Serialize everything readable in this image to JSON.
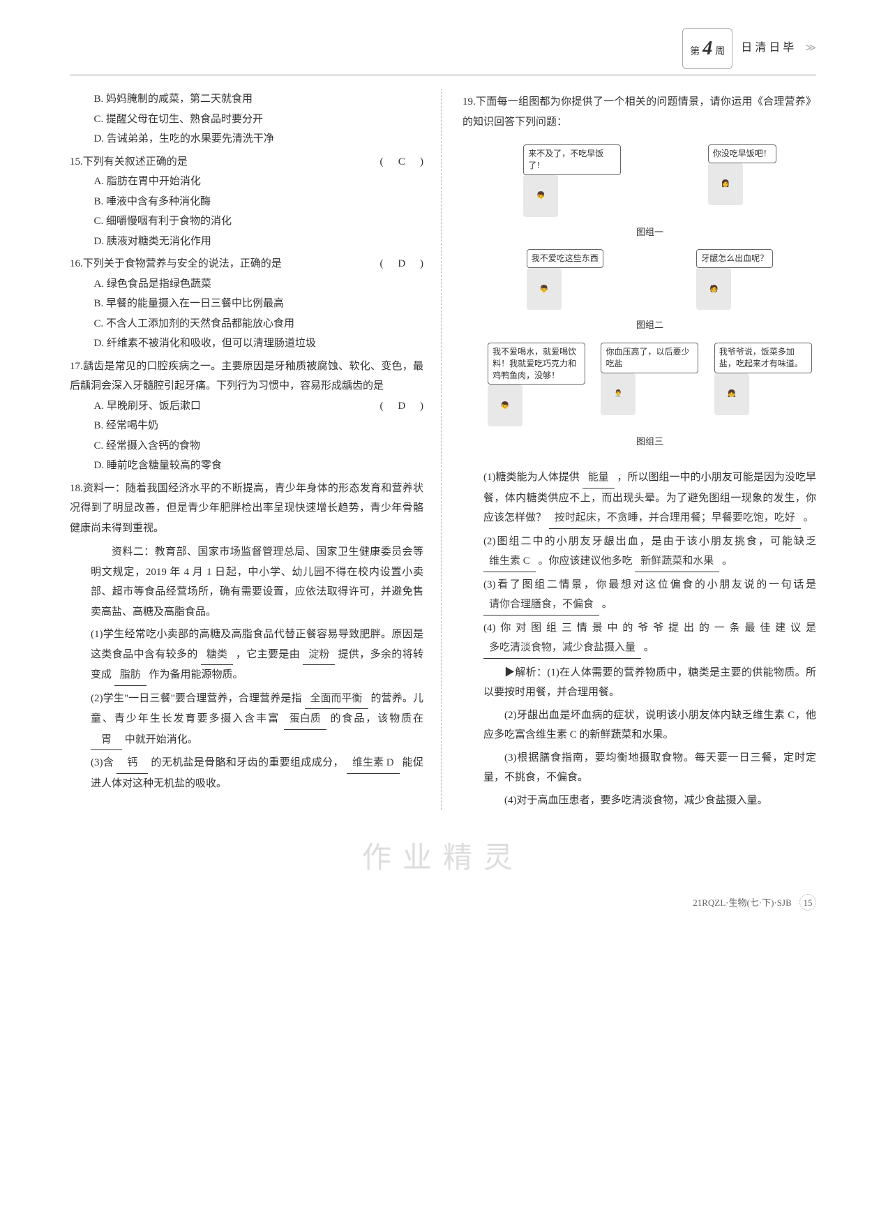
{
  "header": {
    "week_prefix": "第",
    "week_num": "4",
    "week_suffix": "周",
    "title": "日清日毕"
  },
  "left": {
    "opts14": {
      "B": "B. 妈妈腌制的咸菜，第二天就食用",
      "C": "C. 提醒父母在切生、熟食品时要分开",
      "D": "D. 告诫弟弟，生吃的水果要先清洗干净"
    },
    "q15": {
      "num": "15.",
      "text": "下列有关叙述正确的是",
      "answer": "C",
      "A": "A. 脂肪在胃中开始消化",
      "B": "B. 唾液中含有多种消化酶",
      "C": "C. 细嚼慢咽有利于食物的消化",
      "D": "D. 胰液对糖类无消化作用"
    },
    "q16": {
      "num": "16.",
      "text": "下列关于食物营养与安全的说法，正确的是",
      "answer": "D",
      "A": "A. 绿色食品是指绿色蔬菜",
      "B": "B. 早餐的能量摄入在一日三餐中比例最高",
      "C": "C. 不含人工添加剂的天然食品都能放心食用",
      "D": "D. 纤维素不被消化和吸收，但可以清理肠道垃圾"
    },
    "q17": {
      "num": "17.",
      "text": "龋齿是常见的口腔疾病之一。主要原因是牙釉质被腐蚀、软化、变色，最后龋洞会深入牙髓腔引起牙痛。下列行为习惯中，容易形成龋齿的是",
      "answer": "D",
      "A": "A. 早晚刷牙、饭后漱口",
      "B": "B. 经常喝牛奶",
      "C": "C. 经常摄入含钙的食物",
      "D": "D. 睡前吃含糖量较高的零食"
    },
    "q18": {
      "num": "18.",
      "mat1": "资料一：随着我国经济水平的不断提高，青少年身体的形态发育和营养状况得到了明显改善，但是青少年肥胖检出率呈现快速增长趋势，青少年骨骼健康尚未得到重视。",
      "mat2": "资料二：教育部、国家市场监督管理总局、国家卫生健康委员会等明文规定，2019 年 4 月 1 日起，中小学、幼儿园不得在校内设置小卖部、超市等食品经营场所，确有需要设置，应依法取得许可，并避免售卖高盐、高糖及高脂食品。",
      "sub1_a": "(1)学生经常吃小卖部的高糖及高脂食品代替正餐容易导致肥胖。原因是这类食品中含有较多的",
      "sub1_blank1": "糖类",
      "sub1_b": "，它主要是由",
      "sub1_blank2": "淀粉",
      "sub1_c": "提供，多余的将转变成",
      "sub1_blank3": "脂肪",
      "sub1_d": "作为备用能源物质。",
      "sub2_a": "(2)学生\"一日三餐\"要合理营养，合理营养是指",
      "sub2_blank1": "全面而平衡",
      "sub2_b": "的营养。儿童、青少年生长发育要多摄入含丰富",
      "sub2_blank2": "蛋白质",
      "sub2_c": "的食品，该物质在",
      "sub2_blank3": "胃",
      "sub2_d": "中就开始消化。",
      "sub3_a": "(3)含",
      "sub3_blank1": "钙",
      "sub3_b": "的无机盐是骨骼和牙齿的重要组成成分，",
      "sub3_blank2": "维生素 D",
      "sub3_c": "能促进人体对这种无机盐的吸收。"
    }
  },
  "right": {
    "q19": {
      "num": "19.",
      "intro": "下面每一组图都为你提供了一个相关的问题情景，请你运用《合理营养》的知识回答下列问题：",
      "g1s1": "来不及了，不吃早饭了！",
      "g1s2": "你没吃早饭吧！",
      "g1label": "图组一",
      "g2s1": "我不爱吃这些东西",
      "g2s2": "牙龈怎么出血呢？",
      "g2label": "图组二",
      "g3s1": "我不爱喝水，就爱喝饮料！我就爱吃巧克力和鸡鸭鱼肉，没够！",
      "g3s2": "你血压高了，以后要少吃盐",
      "g3s3": "我爷爷说，饭菜多加盐，吃起来才有味道。",
      "g3label": "图组三",
      "sub1_a": "(1)糖类能为人体提供",
      "sub1_blank1": "能量",
      "sub1_b": "，所以图组一中的小朋友可能是因为没吃早餐，体内糖类供应不上，而出现头晕。为了避免图组一现象的发生，你应该怎样做？",
      "sub1_blank2": "按时起床，不贪睡，并合理用餐；早餐要吃饱，吃好",
      "sub1_c": "。",
      "sub2_a": "(2)图组二中的小朋友牙龈出血，是由于该小朋友挑食，可能缺乏",
      "sub2_blank1": "维生素 C",
      "sub2_b": "。你应该建议他多吃",
      "sub2_blank2": "新鲜蔬菜和水果",
      "sub2_c": "。",
      "sub3_a": "(3)看了图组二情景，你最想对这位偏食的小朋友说的一句话是",
      "sub3_blank1": "请你合理膳食，不偏食",
      "sub3_b": "。",
      "sub4_a": "(4)你对图组三情景中的爷爷提出的一条最佳建议是",
      "sub4_blank1": "多吃清淡食物，减少食盐摄入量",
      "sub4_b": "。",
      "ana_lead": "▶解析：(1)在人体需要的营养物质中，糖类是主要的供能物质。所以要按时用餐，并合理用餐。",
      "ana2": "(2)牙龈出血是坏血病的症状，说明该小朋友体内缺乏维生素 C，他应多吃富含维生素 C 的新鲜蔬菜和水果。",
      "ana3": "(3)根据膳食指南，要均衡地摄取食物。每天要一日三餐，定时定量，不挑食，不偏食。",
      "ana4": "(4)对于高血压患者，要多吃清淡食物，减少食盐摄入量。"
    }
  },
  "watermark": "作业精灵",
  "footer": {
    "code": "21RQZL·生物(七·下)·SJB",
    "page": "15"
  }
}
